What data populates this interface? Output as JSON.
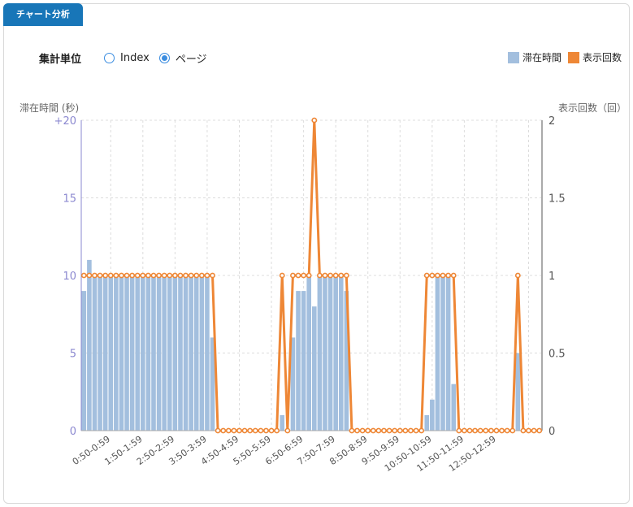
{
  "panel": {
    "tab_label": "チャート分析"
  },
  "controls": {
    "label": "集計単位",
    "options": [
      {
        "label": "Index",
        "checked": false
      },
      {
        "label": "ページ",
        "checked": true
      }
    ]
  },
  "colors": {
    "bar": "#a3bfde",
    "line": "#ee8736",
    "accent": "#1876b8",
    "radio": "#3b8de0",
    "left_axis": "#8b88d0"
  },
  "chart_data": {
    "type": "bar+line",
    "y_left_label": "滞在時間 (秒)",
    "y_right_label": "表示回数（回）",
    "y_left_ticks": [
      "0",
      "5",
      "10",
      "15",
      "+20"
    ],
    "y_right_ticks": [
      "0",
      "0.5",
      "1",
      "1.5",
      "2"
    ],
    "y_left_range": [
      0,
      20
    ],
    "y_right_range": [
      0,
      2
    ],
    "x_tick_labels": [
      "0:50-0:59",
      "1:50-1:59",
      "2:50-2:59",
      "3:50-3:59",
      "4:50-4:59",
      "5:50-5:59",
      "6:50-6:59",
      "7:50-7:59",
      "8:50-8:59",
      "9:50-9:59",
      "10:50-10:59",
      "11:50-11:59",
      "12:50-12:59"
    ],
    "x_tick_every": 6,
    "x_tick_offset": 5,
    "grid": true,
    "legend_position": "top-right",
    "series": [
      {
        "name": "滞在時間",
        "type": "bar",
        "axis": "left",
        "values": [
          9,
          11,
          10,
          10,
          10,
          10,
          10,
          10,
          10,
          10,
          10,
          10,
          10,
          10,
          10,
          10,
          10,
          10,
          10,
          10,
          10,
          10,
          10,
          10,
          6,
          0,
          0,
          0,
          0,
          0,
          0,
          0,
          0,
          0,
          0,
          0,
          0,
          1,
          0,
          6,
          9,
          9,
          10,
          8,
          10,
          10,
          10,
          10,
          10,
          9,
          0,
          0,
          0,
          0,
          0,
          0,
          0,
          0,
          0,
          0,
          0,
          0,
          0,
          0,
          1,
          2,
          10,
          10,
          10,
          3,
          0,
          0,
          0,
          0,
          0,
          0,
          0,
          0,
          0,
          0,
          0,
          5,
          0,
          0,
          0,
          0
        ]
      },
      {
        "name": "表示回数",
        "type": "line",
        "axis": "right",
        "values": [
          1,
          1,
          1,
          1,
          1,
          1,
          1,
          1,
          1,
          1,
          1,
          1,
          1,
          1,
          1,
          1,
          1,
          1,
          1,
          1,
          1,
          1,
          1,
          1,
          1,
          0,
          0,
          0,
          0,
          0,
          0,
          0,
          0,
          0,
          0,
          0,
          0,
          1,
          0,
          1,
          1,
          1,
          1,
          2,
          1,
          1,
          1,
          1,
          1,
          1,
          0,
          0,
          0,
          0,
          0,
          0,
          0,
          0,
          0,
          0,
          0,
          0,
          0,
          0,
          1,
          1,
          1,
          1,
          1,
          1,
          0,
          0,
          0,
          0,
          0,
          0,
          0,
          0,
          0,
          0,
          0,
          1,
          0,
          0,
          0,
          0
        ]
      }
    ]
  }
}
